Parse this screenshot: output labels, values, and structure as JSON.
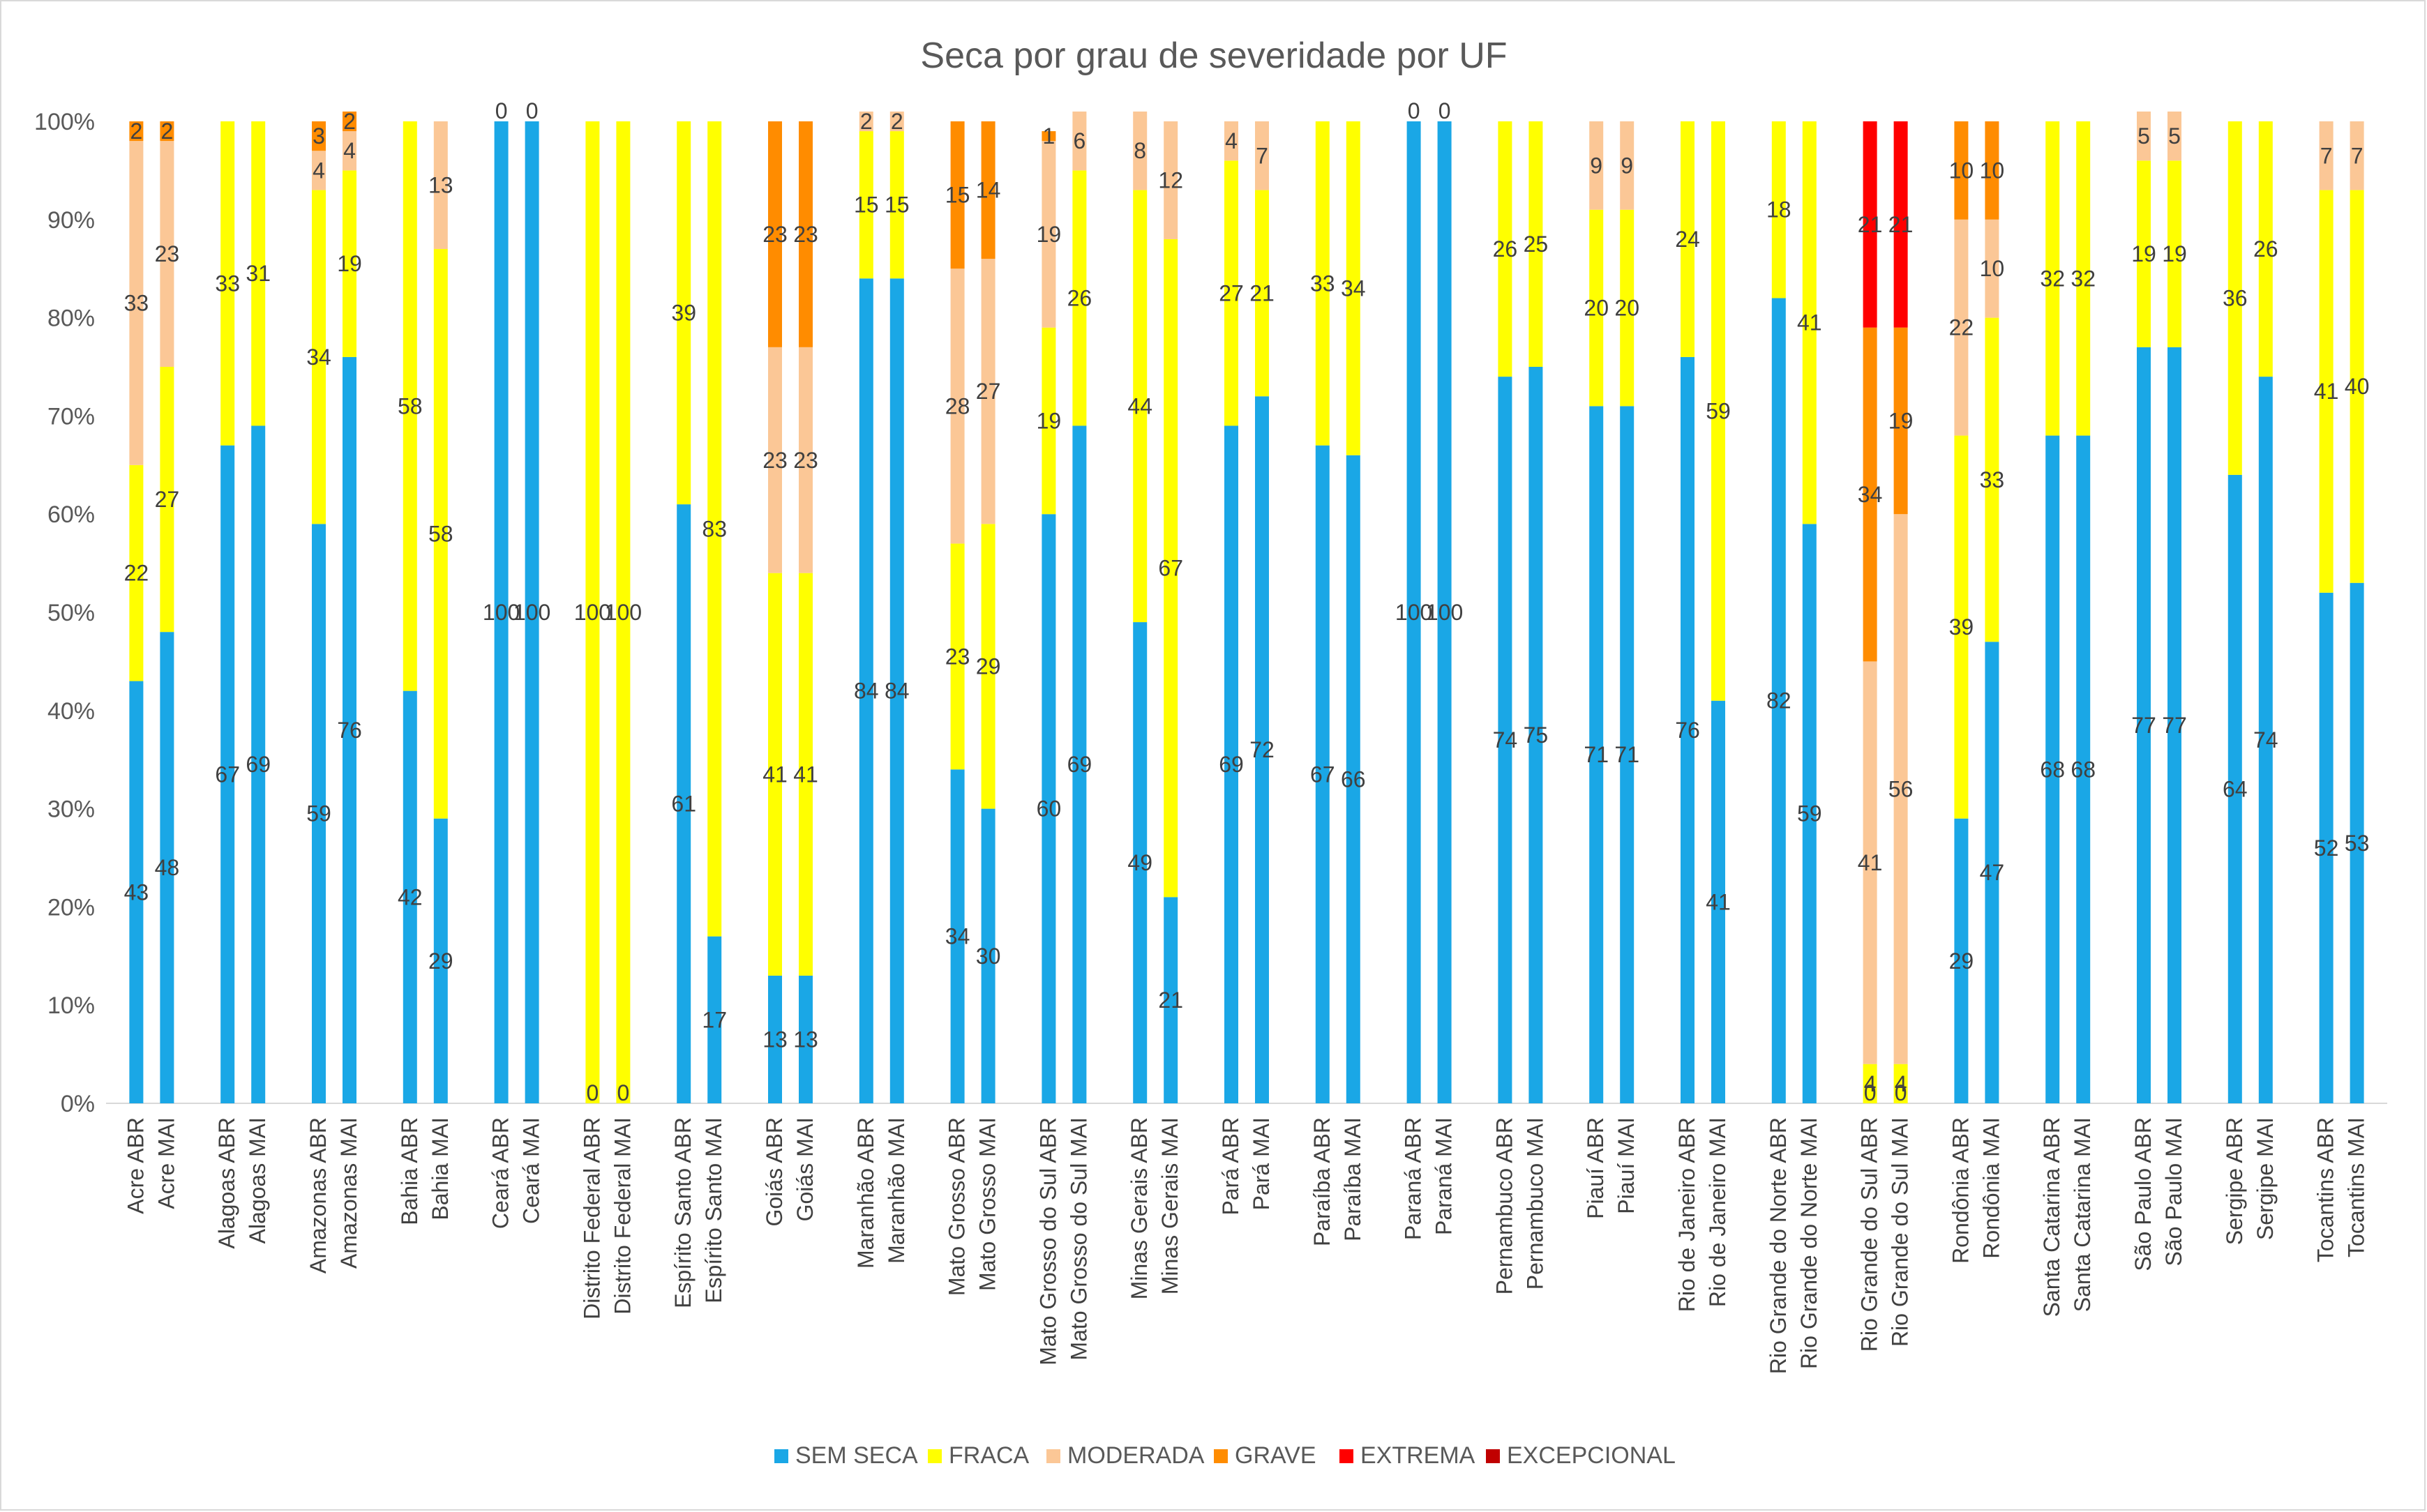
{
  "chart_data": {
    "type": "bar",
    "stacked": true,
    "title": "Seca por grau de severidade por UF",
    "ylim": [
      0,
      100
    ],
    "y_ticks": [
      "0%",
      "10%",
      "20%",
      "30%",
      "40%",
      "50%",
      "60%",
      "70%",
      "80%",
      "90%",
      "100%"
    ],
    "grid": false,
    "legend_position": "bottom",
    "series": [
      {
        "name": "SEM SECA",
        "color": "#1aa7e6"
      },
      {
        "name": "FRACA",
        "color": "#ffff00"
      },
      {
        "name": "MODERADA",
        "color": "#fbc796"
      },
      {
        "name": "GRAVE",
        "color": "#ff8c00"
      },
      {
        "name": "EXTREMA",
        "color": "#ff0000"
      },
      {
        "name": "EXCEPCIONAL",
        "color": "#c00000"
      }
    ],
    "groups": [
      {
        "bars": [
          {
            "label": "Acre ABR",
            "values": [
              43,
              22,
              33,
              2,
              0,
              0
            ]
          },
          {
            "label": "Acre MAI",
            "values": [
              48,
              27,
              23,
              2,
              0,
              0
            ]
          }
        ]
      },
      {
        "bars": [
          {
            "label": "Alagoas ABR",
            "values": [
              67,
              33,
              0,
              0,
              0,
              0
            ]
          },
          {
            "label": "Alagoas MAI",
            "values": [
              69,
              31,
              0,
              0,
              0,
              0
            ]
          }
        ]
      },
      {
        "bars": [
          {
            "label": "Amazonas ABR",
            "values": [
              59,
              34,
              4,
              3,
              0,
              0
            ]
          },
          {
            "label": "Amazonas MAI",
            "values": [
              76,
              19,
              4,
              2,
              0,
              0
            ]
          }
        ]
      },
      {
        "bars": [
          {
            "label": "Bahia ABR",
            "values": [
              42,
              58,
              0,
              0,
              0,
              0
            ]
          },
          {
            "label": "Bahia MAI",
            "values": [
              29,
              58,
              13,
              0,
              0,
              0
            ]
          }
        ]
      },
      {
        "bars": [
          {
            "label": "Ceará ABR",
            "values": [
              100,
              0,
              0,
              0,
              0,
              0
            ]
          },
          {
            "label": "Ceará MAI",
            "values": [
              100,
              0,
              0,
              0,
              0,
              0
            ]
          }
        ]
      },
      {
        "bars": [
          {
            "label": "Distrito Federal ABR",
            "values": [
              0,
              100,
              0,
              0,
              0,
              0
            ]
          },
          {
            "label": "Distrito Federal MAI",
            "values": [
              0,
              100,
              0,
              0,
              0,
              0
            ]
          }
        ]
      },
      {
        "bars": [
          {
            "label": "Espírito Santo ABR",
            "values": [
              61,
              39,
              0,
              0,
              0,
              0
            ]
          },
          {
            "label": "Espírito Santo MAI",
            "values": [
              17,
              83,
              0,
              0,
              0,
              0
            ]
          }
        ]
      },
      {
        "bars": [
          {
            "label": "Goiás ABR",
            "values": [
              13,
              41,
              23,
              23,
              0,
              0
            ]
          },
          {
            "label": "Goiás MAI",
            "values": [
              13,
              41,
              23,
              23,
              0,
              0
            ]
          }
        ]
      },
      {
        "bars": [
          {
            "label": "Maranhão ABR",
            "values": [
              84,
              15,
              2,
              0,
              0,
              0
            ]
          },
          {
            "label": "Maranhão MAI",
            "values": [
              84,
              15,
              2,
              0,
              0,
              0
            ]
          }
        ]
      },
      {
        "bars": [
          {
            "label": "Mato Grosso ABR",
            "values": [
              34,
              23,
              28,
              15,
              0,
              0
            ]
          },
          {
            "label": "Mato Grosso MAI",
            "values": [
              30,
              29,
              27,
              14,
              0,
              0
            ]
          }
        ]
      },
      {
        "bars": [
          {
            "label": "Mato Grosso do Sul ABR",
            "values": [
              60,
              19,
              19,
              1,
              0,
              0
            ]
          },
          {
            "label": "Mato Grosso do Sul MAI",
            "values": [
              69,
              26,
              6,
              0,
              0,
              0
            ]
          }
        ]
      },
      {
        "bars": [
          {
            "label": "Minas Gerais ABR",
            "values": [
              49,
              44,
              8,
              0,
              0,
              0
            ]
          },
          {
            "label": "Minas Gerais MAI",
            "values": [
              21,
              67,
              12,
              0,
              0,
              0
            ]
          }
        ]
      },
      {
        "bars": [
          {
            "label": "Pará ABR",
            "values": [
              69,
              27,
              4,
              0,
              0,
              0
            ]
          },
          {
            "label": "Pará MAI",
            "values": [
              72,
              21,
              7,
              0,
              0,
              0
            ]
          }
        ]
      },
      {
        "bars": [
          {
            "label": "Paraíba ABR",
            "values": [
              67,
              33,
              0,
              0,
              0,
              0
            ]
          },
          {
            "label": "Paraíba MAI",
            "values": [
              66,
              34,
              0,
              0,
              0,
              0
            ]
          }
        ]
      },
      {
        "bars": [
          {
            "label": "Paraná ABR",
            "values": [
              100,
              0,
              0,
              0,
              0,
              0
            ]
          },
          {
            "label": "Paraná MAI",
            "values": [
              100,
              0,
              0,
              0,
              0,
              0
            ]
          }
        ]
      },
      {
        "bars": [
          {
            "label": "Pernambuco ABR",
            "values": [
              74,
              26,
              0,
              0,
              0,
              0
            ]
          },
          {
            "label": "Pernambuco MAI",
            "values": [
              75,
              25,
              0,
              0,
              0,
              0
            ]
          }
        ]
      },
      {
        "bars": [
          {
            "label": "Piauí ABR",
            "values": [
              71,
              20,
              9,
              0,
              0,
              0
            ]
          },
          {
            "label": "Piauí MAI",
            "values": [
              71,
              20,
              9,
              0,
              0,
              0
            ]
          }
        ]
      },
      {
        "bars": [
          {
            "label": "Rio de Janeiro ABR",
            "values": [
              76,
              24,
              0,
              0,
              0,
              0
            ]
          },
          {
            "label": "Rio de Janeiro MAI",
            "values": [
              41,
              59,
              0,
              0,
              0,
              0
            ]
          }
        ]
      },
      {
        "bars": [
          {
            "label": "Rio Grande do Norte ABR",
            "values": [
              82,
              18,
              0,
              0,
              0,
              0
            ]
          },
          {
            "label": "Rio Grande do Norte MAI",
            "values": [
              59,
              41,
              0,
              0,
              0,
              0
            ]
          }
        ]
      },
      {
        "bars": [
          {
            "label": "Rio Grande do Sul ABR",
            "values": [
              0,
              4,
              41,
              34,
              21,
              0
            ]
          },
          {
            "label": "Rio Grande do Sul MAI",
            "values": [
              0,
              4,
              56,
              19,
              21,
              0
            ]
          }
        ]
      },
      {
        "bars": [
          {
            "label": "Rondônia ABR",
            "values": [
              29,
              39,
              22,
              10,
              0,
              0
            ]
          },
          {
            "label": "Rondônia MAI",
            "values": [
              47,
              33,
              10,
              10,
              0,
              0
            ]
          }
        ]
      },
      {
        "bars": [
          {
            "label": "Santa Catarina ABR",
            "values": [
              68,
              32,
              0,
              0,
              0,
              0
            ]
          },
          {
            "label": "Santa Catarina MAI",
            "values": [
              68,
              32,
              0,
              0,
              0,
              0
            ]
          }
        ]
      },
      {
        "bars": [
          {
            "label": "São Paulo ABR",
            "values": [
              77,
              19,
              5,
              0,
              0,
              0
            ]
          },
          {
            "label": "São Paulo MAI",
            "values": [
              77,
              19,
              5,
              0,
              0,
              0
            ]
          }
        ]
      },
      {
        "bars": [
          {
            "label": "Sergipe ABR",
            "values": [
              64,
              36,
              0,
              0,
              0,
              0
            ]
          },
          {
            "label": "Sergipe MAI",
            "values": [
              74,
              26,
              0,
              0,
              0,
              0
            ]
          }
        ]
      },
      {
        "bars": [
          {
            "label": "Tocantins ABR",
            "values": [
              52,
              41,
              7,
              0,
              0,
              0
            ]
          },
          {
            "label": "Tocantins MAI",
            "values": [
              53,
              40,
              7,
              0,
              0,
              0
            ]
          }
        ]
      }
    ]
  }
}
